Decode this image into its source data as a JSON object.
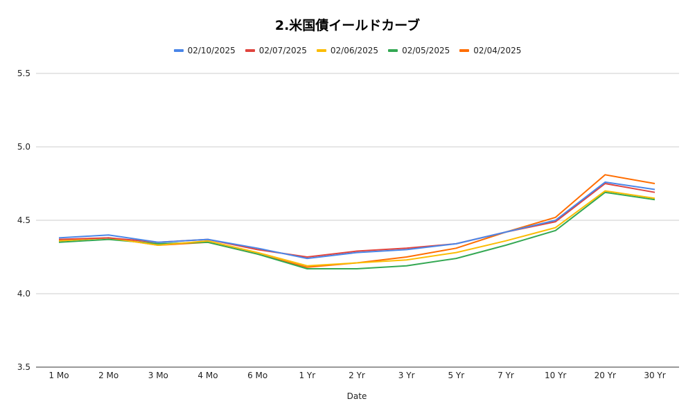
{
  "chart_data": {
    "type": "line",
    "title": "2.米国債イールドカーブ",
    "xlabel": "Date",
    "ylabel": "",
    "ylim": [
      3.5,
      5.5
    ],
    "yticks": [
      "3.5",
      "4.0",
      "4.5",
      "5.0",
      "5.5"
    ],
    "grid": true,
    "legend_position": "top",
    "categories": [
      "1 Mo",
      "2 Mo",
      "3 Mo",
      "4 Mo",
      "6 Mo",
      "1 Yr",
      "2 Yr",
      "3 Yr",
      "5 Yr",
      "7 Yr",
      "10 Yr",
      "20 Yr",
      "30 Yr"
    ],
    "series": [
      {
        "name": "02/10/2025",
        "color": "#4a86e8",
        "values": [
          4.38,
          4.4,
          4.35,
          4.37,
          4.31,
          4.24,
          4.28,
          4.3,
          4.34,
          4.42,
          4.5,
          4.76,
          4.71
        ]
      },
      {
        "name": "02/07/2025",
        "color": "#e0443e",
        "values": [
          4.37,
          4.38,
          4.35,
          4.37,
          4.3,
          4.25,
          4.29,
          4.31,
          4.34,
          4.42,
          4.49,
          4.75,
          4.69
        ]
      },
      {
        "name": "02/06/2025",
        "color": "#fbbc04",
        "values": [
          4.36,
          4.38,
          4.33,
          4.36,
          4.28,
          4.19,
          4.21,
          4.23,
          4.28,
          4.36,
          4.45,
          4.7,
          4.65
        ]
      },
      {
        "name": "02/05/2025",
        "color": "#34a853",
        "values": [
          4.35,
          4.37,
          4.34,
          4.35,
          4.27,
          4.17,
          4.17,
          4.19,
          4.24,
          4.33,
          4.43,
          4.69,
          4.64
        ]
      },
      {
        "name": "02/04/2025",
        "color": "#ff6d00",
        "values": [
          4.36,
          4.38,
          4.33,
          4.35,
          4.27,
          4.18,
          4.21,
          4.25,
          4.31,
          4.42,
          4.52,
          4.81,
          4.75
        ]
      }
    ]
  }
}
